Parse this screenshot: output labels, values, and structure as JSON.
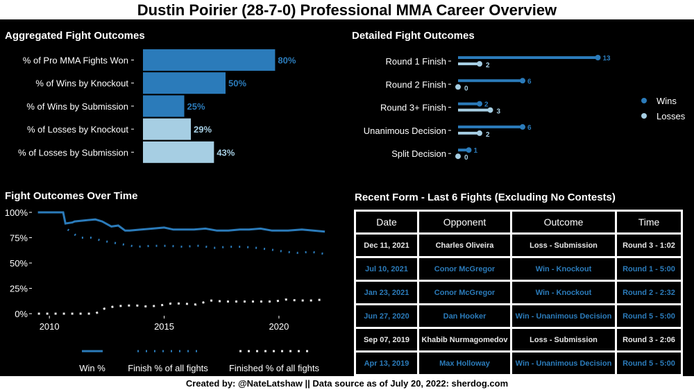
{
  "title": "Dustin Poirier (28-7-0) Professional MMA Career Overview",
  "footer": "Created by: @NateLatshaw || Data source as of July 20, 2022: sherdog.com",
  "colors": {
    "win": "#2b7bba",
    "loss": "#a6cee3",
    "background": "#000000",
    "text": "#ffffff"
  },
  "panels": {
    "aggregated": "Aggregated Fight Outcomes",
    "detailed": "Detailed Fight Outcomes",
    "over_time": "Fight Outcomes Over Time",
    "recent": "Recent Form - Last 6 Fights (Excluding No Contests)"
  },
  "chart_data": [
    {
      "type": "bar",
      "orientation": "horizontal",
      "title": "Aggregated Fight Outcomes",
      "categories": [
        "% of Pro MMA Fights Won",
        "% of Wins by Knockout",
        "% of Wins by Submission",
        "% of Losses by Knockout",
        "% of Losses by Submission"
      ],
      "values": [
        80,
        50,
        25,
        29,
        43
      ],
      "labels": [
        "80%",
        "50%",
        "25%",
        "29%",
        "43%"
      ],
      "groups": [
        "win",
        "win",
        "win",
        "loss",
        "loss"
      ],
      "xlim": [
        0,
        100
      ]
    },
    {
      "type": "scatter",
      "subtype": "lollipop",
      "title": "Detailed Fight Outcomes",
      "categories": [
        "Round 1 Finish",
        "Round 2 Finish",
        "Round 3+ Finish",
        "Unanimous Decision",
        "Split Decision"
      ],
      "series": [
        {
          "name": "Wins",
          "values": [
            13,
            6,
            2,
            6,
            1
          ]
        },
        {
          "name": "Losses",
          "values": [
            2,
            0,
            3,
            2,
            0
          ]
        }
      ],
      "xlim": [
        0,
        13
      ],
      "legend": "right"
    },
    {
      "type": "line",
      "title": "Fight Outcomes Over Time",
      "x_ticks": [
        2010,
        2015,
        2020
      ],
      "y_ticks": [
        "100%",
        "75%",
        "50%",
        "25%",
        "0%"
      ],
      "ylim": [
        0,
        100
      ],
      "xlim": [
        2009.3,
        2022.3
      ],
      "legend": "bottom",
      "series": [
        {
          "name": "Win %",
          "style": "solid",
          "x": [
            2009.5,
            2010.0,
            2010.3,
            2010.6,
            2010.7,
            2011.0,
            2011.1,
            2011.5,
            2012.0,
            2012.3,
            2012.7,
            2013.0,
            2013.3,
            2013.5,
            2014.0,
            2014.5,
            2015.0,
            2015.4,
            2015.8,
            2016.3,
            2016.8,
            2017.3,
            2017.8,
            2018.3,
            2018.7,
            2019.2,
            2019.7,
            2020.4,
            2021.0,
            2021.5,
            2022.0
          ],
          "y": [
            100,
            100,
            100,
            100,
            89,
            90,
            91,
            92,
            93,
            91,
            86,
            87,
            82,
            82,
            83,
            84,
            85,
            83,
            83,
            83,
            84,
            82,
            82,
            83,
            83,
            84,
            82,
            82,
            83,
            82,
            81
          ]
        },
        {
          "name": "Finish % of all fights",
          "style": "dotted",
          "x": [
            2010.8,
            2011.3,
            2011.8,
            2012.3,
            2012.8,
            2013.3,
            2013.8,
            2014.5,
            2015.2,
            2015.8,
            2016.5,
            2017.2,
            2017.8,
            2018.4,
            2019.0,
            2019.7,
            2020.3,
            2020.8,
            2021.4,
            2022.0
          ],
          "y": [
            83,
            75,
            75,
            72,
            70,
            68,
            66,
            67,
            67,
            66,
            67,
            65,
            66,
            66,
            65,
            63,
            61,
            60,
            61,
            59
          ]
        },
        {
          "name": "Finished % of all fights",
          "style": "dotted",
          "x": [
            2009.5,
            2010.0,
            2010.5,
            2011.0,
            2011.5,
            2012.0,
            2012.4,
            2012.8,
            2013.3,
            2013.8,
            2014.3,
            2014.8,
            2015.3,
            2015.8,
            2016.4,
            2017.0,
            2017.6,
            2018.2,
            2018.8,
            2019.4,
            2019.8,
            2020.3,
            2020.8,
            2021.4,
            2022.0
          ],
          "y": [
            0,
            0,
            0,
            0,
            0,
            0,
            5,
            7,
            8,
            8,
            7,
            8,
            10,
            10,
            9,
            13,
            12,
            12,
            12,
            12,
            12,
            14,
            13,
            13,
            14
          ]
        }
      ]
    },
    {
      "type": "table",
      "title": "Recent Form - Last 6 Fights (Excluding No Contests)",
      "columns": [
        "Date",
        "Opponent",
        "Outcome",
        "Time"
      ],
      "rows": [
        {
          "date": "Dec 11, 2021",
          "opponent": "Charles Oliveira",
          "outcome": "Loss - Submission",
          "time": "Round 3 - 1:02",
          "result": "loss"
        },
        {
          "date": "Jul 10, 2021",
          "opponent": "Conor McGregor",
          "outcome": "Win - Knockout",
          "time": "Round 1 - 5:00",
          "result": "win"
        },
        {
          "date": "Jan 23, 2021",
          "opponent": "Conor McGregor",
          "outcome": "Win - Knockout",
          "time": "Round 2 - 2:32",
          "result": "win"
        },
        {
          "date": "Jun 27, 2020",
          "opponent": "Dan Hooker",
          "outcome": "Win - Unanimous Decision",
          "time": "Round 5 - 5:00",
          "result": "win"
        },
        {
          "date": "Sep 07, 2019",
          "opponent": "Khabib Nurmagomedov",
          "outcome": "Loss - Submission",
          "time": "Round 3 - 2:06",
          "result": "loss"
        },
        {
          "date": "Apr 13, 2019",
          "opponent": "Max Holloway",
          "outcome": "Win - Unanimous Decision",
          "time": "Round 5 - 5:00",
          "result": "win"
        }
      ]
    }
  ]
}
